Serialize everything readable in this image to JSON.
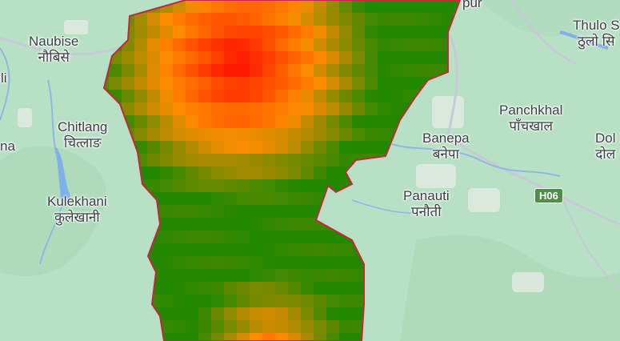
{
  "colors": {
    "terrain": "#b8e0c4",
    "water": "#7fb0ea",
    "river": "#8eb7e6",
    "road": "#c6cad6",
    "boundary": "#c0293f",
    "highway_badge": "#4d8f46",
    "heat_high": "#ff1a00",
    "heat_mid": "#ff8c00",
    "heat_low": "#228800"
  },
  "places": [
    {
      "name": "Naubise",
      "local": "नौबिसे"
    },
    {
      "name": "Chitlang",
      "local": "चित्लाङ"
    },
    {
      "name": "Kulekhani",
      "local": "कुलेखानी"
    },
    {
      "name": "Banepa",
      "local": "बनेपा"
    },
    {
      "name": "Panauti",
      "local": "पनौती"
    },
    {
      "name": "Panchkhal",
      "local": "पाँचखाल"
    },
    {
      "name": "Thulo S",
      "local": "ठुलो सि"
    },
    {
      "name": "Dol",
      "local": "दोल"
    },
    {
      "name": "pur",
      "local": ""
    },
    {
      "name": "li",
      "local": ""
    },
    {
      "name": "na",
      "local": ""
    }
  ],
  "highway_label": "H06"
}
